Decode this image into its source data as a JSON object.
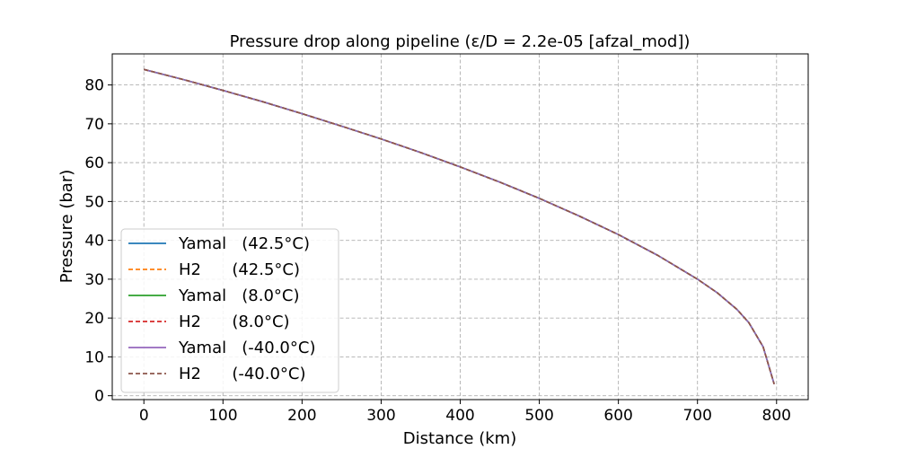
{
  "chart_data": {
    "type": "line",
    "title": "Pressure drop along pipeline (ε/D = 2.2e-05 [afzal_mod])",
    "xlabel": "Distance (km)",
    "ylabel": "Pressure (bar)",
    "xlim": [
      -40,
      840
    ],
    "ylim": [
      -1,
      88
    ],
    "xticks": [
      0,
      100,
      200,
      300,
      400,
      500,
      600,
      700,
      800
    ],
    "yticks": [
      0,
      10,
      20,
      30,
      40,
      50,
      60,
      70,
      80
    ],
    "grid": true,
    "legend_position": "lower-left",
    "x": [
      0,
      50,
      100,
      150,
      200,
      250,
      300,
      350,
      400,
      450,
      500,
      550,
      600,
      650,
      700,
      725,
      750,
      765,
      783,
      797
    ],
    "series": [
      {
        "name": "Yamal   (42.5°C)",
        "color": "#1f77b4",
        "style": "solid",
        "values": [
          84.0,
          81.4,
          78.6,
          75.7,
          72.6,
          69.4,
          66.1,
          62.6,
          58.9,
          55.0,
          50.8,
          46.3,
          41.5,
          36.1,
          30.0,
          26.5,
          22.2,
          18.8,
          12.6,
          3.0
        ]
      },
      {
        "name": "H2      (42.5°C)",
        "color": "#ff7f0e",
        "style": "dashed",
        "values": [
          84.0,
          81.4,
          78.6,
          75.7,
          72.6,
          69.4,
          66.1,
          62.6,
          58.9,
          55.0,
          50.8,
          46.3,
          41.5,
          36.1,
          30.0,
          26.5,
          22.2,
          18.8,
          12.6,
          3.0
        ]
      },
      {
        "name": "Yamal   (8.0°C)",
        "color": "#2ca02c",
        "style": "solid",
        "values": [
          84.0,
          81.4,
          78.6,
          75.7,
          72.6,
          69.4,
          66.1,
          62.6,
          58.9,
          55.0,
          50.8,
          46.3,
          41.5,
          36.1,
          30.0,
          26.5,
          22.2,
          18.8,
          12.6,
          3.0
        ]
      },
      {
        "name": "H2      (8.0°C)",
        "color": "#d62728",
        "style": "dashed",
        "values": [
          84.0,
          81.4,
          78.6,
          75.7,
          72.6,
          69.4,
          66.1,
          62.6,
          58.9,
          55.0,
          50.8,
          46.3,
          41.5,
          36.1,
          30.0,
          26.5,
          22.2,
          18.8,
          12.6,
          3.0
        ]
      },
      {
        "name": "Yamal   (-40.0°C)",
        "color": "#9467bd",
        "style": "solid",
        "values": [
          84.0,
          81.4,
          78.6,
          75.7,
          72.6,
          69.4,
          66.1,
          62.6,
          58.9,
          55.0,
          50.8,
          46.3,
          41.5,
          36.1,
          30.0,
          26.5,
          22.2,
          18.8,
          12.6,
          3.0
        ]
      },
      {
        "name": "H2      (-40.0°C)",
        "color": "#8c564b",
        "style": "dashed",
        "values": [
          84.0,
          81.4,
          78.6,
          75.7,
          72.6,
          69.4,
          66.1,
          62.6,
          58.9,
          55.0,
          50.8,
          46.3,
          41.5,
          36.1,
          30.0,
          26.5,
          22.2,
          18.8,
          12.6,
          3.0
        ]
      }
    ]
  }
}
